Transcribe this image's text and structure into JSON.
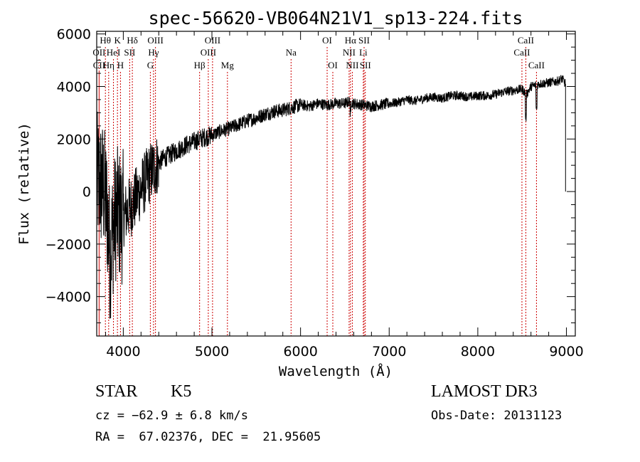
{
  "chart_data": {
    "type": "line",
    "title": "spec-56620-VB064N21V1_sp13-224.fits",
    "xlabel": "Wavelength (Å)",
    "ylabel": "Flux (relative)",
    "xlim": [
      3700,
      9100
    ],
    "ylim": [
      -5500,
      6100
    ],
    "x_ticks": [
      4000,
      5000,
      6000,
      7000,
      8000,
      9000
    ],
    "x_tick_labels": [
      "4000",
      "5000",
      "6000",
      "7000",
      "8000",
      "9000"
    ],
    "y_ticks": [
      -4000,
      -2000,
      0,
      2000,
      4000,
      6000
    ],
    "y_tick_labels": [
      "−4000",
      "−2000",
      "0",
      "2000",
      "4000",
      "6000"
    ],
    "series": [
      {
        "name": "flux",
        "x": [
          3700,
          3740,
          3780,
          3820,
          3850,
          3880,
          3920,
          3950,
          3990,
          4050,
          4100,
          4150,
          4200,
          4250,
          4300,
          4350,
          4400,
          4450,
          4500,
          4600,
          4700,
          4800,
          4900,
          5000,
          5100,
          5200,
          5300,
          5400,
          5500,
          5600,
          5700,
          5800,
          5900,
          6000,
          6100,
          6200,
          6300,
          6400,
          6500,
          6560,
          6600,
          6700,
          6800,
          6900,
          7000,
          7100,
          7200,
          7300,
          7400,
          7500,
          7600,
          7700,
          7800,
          7900,
          8000,
          8100,
          8200,
          8300,
          8400,
          8500,
          8550,
          8600,
          8700,
          8800,
          8900,
          8950,
          8990
        ],
        "y": [
          500,
          300,
          100,
          -800,
          -2500,
          -1500,
          -800,
          -900,
          -1000,
          -700,
          -500,
          -200,
          100,
          400,
          700,
          900,
          1100,
          1250,
          1350,
          1550,
          1750,
          1900,
          2050,
          2150,
          2300,
          2400,
          2550,
          2700,
          2800,
          2950,
          3050,
          3100,
          3200,
          3300,
          3250,
          3350,
          3300,
          3350,
          3350,
          3450,
          3350,
          3300,
          3250,
          3300,
          3350,
          3400,
          3500,
          3450,
          3550,
          3600,
          3550,
          3650,
          3650,
          3600,
          3650,
          3650,
          3700,
          3800,
          3850,
          3900,
          3700,
          4000,
          4100,
          4150,
          4200,
          4300,
          4100
        ]
      }
    ],
    "line_markers": [
      {
        "name": "CII",
        "x": 3727,
        "row": 3
      },
      {
        "name": "Hθ",
        "x": 3798,
        "row": 1
      },
      {
        "name": "OII",
        "x": 3727,
        "row": 2
      },
      {
        "name": "Hη",
        "x": 3835,
        "row": 3
      },
      {
        "name": "HeI",
        "x": 3889,
        "row": 2
      },
      {
        "name": "K",
        "x": 3934,
        "row": 1
      },
      {
        "name": "H",
        "x": 3968,
        "row": 3
      },
      {
        "name": "SII",
        "x": 4072,
        "row": 2
      },
      {
        "name": "Hδ",
        "x": 4102,
        "row": 1
      },
      {
        "name": "OIII",
        "x": 4363,
        "row": 1
      },
      {
        "name": "Hγ",
        "x": 4341,
        "row": 2
      },
      {
        "name": "G",
        "x": 4305,
        "row": 3
      },
      {
        "name": "Hβ",
        "x": 4861,
        "row": 3
      },
      {
        "name": "OIII",
        "x": 5007,
        "row": 1
      },
      {
        "name": "OIII",
        "x": 4959,
        "row": 2
      },
      {
        "name": "Mg",
        "x": 5175,
        "row": 3
      },
      {
        "name": "Na",
        "x": 5893,
        "row": 2
      },
      {
        "name": "OI",
        "x": 6300,
        "row": 1
      },
      {
        "name": "OI",
        "x": 6364,
        "row": 3
      },
      {
        "name": "Hα",
        "x": 6563,
        "row": 1
      },
      {
        "name": "NII",
        "x": 6548,
        "row": 2
      },
      {
        "name": "NII",
        "x": 6584,
        "row": 3
      },
      {
        "name": "SII",
        "x": 6717,
        "row": 1
      },
      {
        "name": "Li",
        "x": 6708,
        "row": 2
      },
      {
        "name": "SII",
        "x": 6731,
        "row": 3
      },
      {
        "name": "CaII",
        "x": 8542,
        "row": 1
      },
      {
        "name": "CaII",
        "x": 8498,
        "row": 2
      },
      {
        "name": "CaII",
        "x": 8662,
        "row": 3
      }
    ]
  },
  "footer": {
    "class_label": "STAR",
    "subclass": "K5",
    "survey": "LAMOST DR3",
    "cz_text": "cz = −62.9 ± 6.8 km/s",
    "obs_date_text": "Obs-Date: 20131123",
    "coords_text": "RA =  67.02376, DEC =  21.95605"
  },
  "colors": {
    "spectrum": "#000000",
    "marker": "#cc0000",
    "axis": "#000000"
  }
}
